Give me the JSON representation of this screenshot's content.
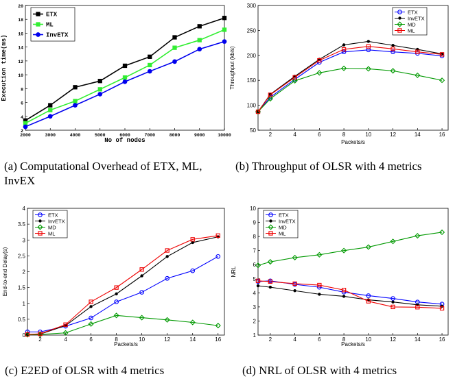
{
  "captions": {
    "a": "(a) Computational Overhead of ETX, ML, InvEX",
    "b": "(b) Throughput of OLSR with 4 metrics",
    "c": "(c) E2ED of OLSR with 4 metrics",
    "d": "(d) NRL of OLSR with 4 metrics"
  },
  "chart_data": [
    {
      "id": "a",
      "type": "line",
      "xlabel": "No of nodes",
      "ylabel": "Execution time(ms)",
      "x": [
        2000,
        3000,
        4000,
        5000,
        6000,
        7000,
        8000,
        9000,
        10000
      ],
      "xlim": [
        2000,
        10000
      ],
      "ylim": [
        2,
        20
      ],
      "xticks": [
        2000,
        3000,
        4000,
        5000,
        6000,
        7000,
        8000,
        9000,
        10000
      ],
      "yticks": [
        2,
        4,
        6,
        8,
        10,
        12,
        14,
        16,
        18,
        20
      ],
      "grid": false,
      "legend_position": "top-left",
      "series": [
        {
          "name": "ETX",
          "color": "#000000",
          "marker": "square",
          "values": [
            3.4,
            5.6,
            8.2,
            9.1,
            11.3,
            12.6,
            15.4,
            17.0,
            18.2
          ]
        },
        {
          "name": "ML",
          "color": "#33ee33",
          "marker": "square",
          "values": [
            3.0,
            4.9,
            6.2,
            7.9,
            9.6,
            11.4,
            13.9,
            15.0,
            16.5
          ]
        },
        {
          "name": "InvETX",
          "color": "#0000ee",
          "marker": "circle",
          "values": [
            2.5,
            4.0,
            5.6,
            7.2,
            9.0,
            10.5,
            11.9,
            13.7,
            14.8
          ]
        }
      ]
    },
    {
      "id": "b",
      "type": "line",
      "xlabel": "Packets/s",
      "ylabel": "Throughput (kb/s)",
      "x": [
        1,
        2,
        4,
        6,
        8,
        10,
        12,
        14,
        16
      ],
      "xlim": [
        1,
        16.5
      ],
      "ylim": [
        50,
        300
      ],
      "xticks": [
        2,
        4,
        6,
        8,
        10,
        12,
        14,
        16
      ],
      "yticks": [
        50,
        100,
        150,
        200,
        250,
        300
      ],
      "grid": false,
      "legend_position": "top-right",
      "series": [
        {
          "name": "ETX",
          "color": "#0000ff",
          "marker": "circle",
          "values": [
            87,
            116,
            152,
            186,
            207,
            211,
            207,
            204,
            199
          ]
        },
        {
          "name": "InvETX",
          "color": "#000000",
          "marker": "dot",
          "values": [
            87,
            122,
            158,
            192,
            221,
            228,
            220,
            212,
            203
          ]
        },
        {
          "name": "MD",
          "color": "#009900",
          "marker": "diamond",
          "values": [
            87,
            113,
            149,
            165,
            174,
            173,
            169,
            160,
            150
          ]
        },
        {
          "name": "ML",
          "color": "#ee0000",
          "marker": "square",
          "values": [
            87,
            121,
            156,
            190,
            212,
            218,
            213,
            207,
            202
          ]
        }
      ]
    },
    {
      "id": "c",
      "type": "line",
      "xlabel": "Packets/s",
      "ylabel": "End-to-end Delay(s)",
      "x": [
        1,
        2,
        4,
        6,
        8,
        10,
        12,
        14,
        16
      ],
      "xlim": [
        1,
        16.5
      ],
      "ylim": [
        0,
        4
      ],
      "xticks": [
        2,
        4,
        6,
        8,
        10,
        12,
        14,
        16
      ],
      "yticks": [
        0,
        0.5,
        1,
        1.5,
        2,
        2.5,
        3,
        3.5,
        4
      ],
      "ytick_labels": [
        "0",
        "0.5",
        "1",
        "1.5",
        "2",
        "2.5",
        "3",
        "3.5",
        "4"
      ],
      "grid": false,
      "legend_position": "top-left",
      "series": [
        {
          "name": "ETX",
          "color": "#0000ff",
          "marker": "circle",
          "values": [
            0.1,
            0.1,
            0.28,
            0.54,
            1.05,
            1.35,
            1.79,
            2.03,
            2.48
          ]
        },
        {
          "name": "InvETX",
          "color": "#000000",
          "marker": "dot",
          "values": [
            0.02,
            0.03,
            0.3,
            0.9,
            1.3,
            1.87,
            2.48,
            2.92,
            3.1
          ]
        },
        {
          "name": "MD",
          "color": "#009900",
          "marker": "diamond",
          "values": [
            0.01,
            0.02,
            0.07,
            0.35,
            0.62,
            0.55,
            0.48,
            0.4,
            0.3
          ]
        },
        {
          "name": "ML",
          "color": "#ee0000",
          "marker": "square",
          "values": [
            0.02,
            0.04,
            0.33,
            1.05,
            1.5,
            2.07,
            2.67,
            3.02,
            3.14
          ]
        }
      ]
    },
    {
      "id": "d",
      "type": "line",
      "xlabel": "Packets/s",
      "ylabel": "NRL",
      "x": [
        1,
        2,
        4,
        6,
        8,
        10,
        12,
        14,
        16
      ],
      "xlim": [
        1,
        16.5
      ],
      "ylim": [
        1,
        10
      ],
      "xticks": [
        2,
        4,
        6,
        8,
        10,
        12,
        14,
        16
      ],
      "yticks": [
        1,
        2,
        3,
        4,
        5,
        6,
        7,
        8,
        9,
        10
      ],
      "grid": false,
      "legend_position": "top-left",
      "series": [
        {
          "name": "ETX",
          "color": "#0000ff",
          "marker": "circle",
          "values": [
            4.8,
            4.85,
            4.6,
            4.4,
            4.05,
            3.8,
            3.6,
            3.35,
            3.2
          ]
        },
        {
          "name": "InvETX",
          "color": "#000000",
          "marker": "dot",
          "values": [
            4.5,
            4.4,
            4.15,
            3.9,
            3.75,
            3.5,
            3.35,
            3.15,
            3.05
          ]
        },
        {
          "name": "MD",
          "color": "#009900",
          "marker": "diamond",
          "values": [
            5.95,
            6.2,
            6.5,
            6.7,
            7.0,
            7.25,
            7.65,
            8.05,
            8.3
          ]
        },
        {
          "name": "ML",
          "color": "#ee0000",
          "marker": "square",
          "values": [
            4.85,
            4.8,
            4.65,
            4.55,
            4.2,
            3.4,
            3.0,
            2.98,
            2.9
          ]
        }
      ]
    }
  ]
}
